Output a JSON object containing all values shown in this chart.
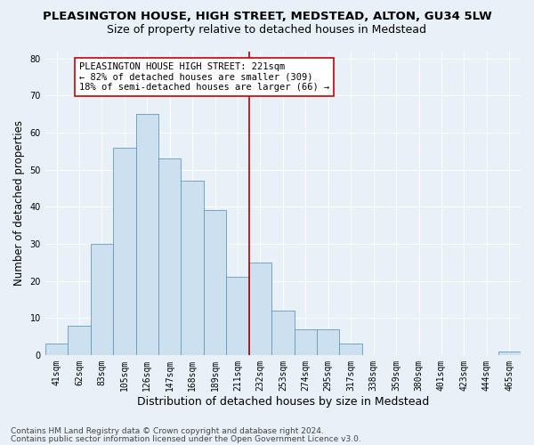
{
  "title": "PLEASINGTON HOUSE, HIGH STREET, MEDSTEAD, ALTON, GU34 5LW",
  "subtitle": "Size of property relative to detached houses in Medstead",
  "xlabel": "Distribution of detached houses by size in Medstead",
  "ylabel": "Number of detached properties",
  "categories": [
    "41sqm",
    "62sqm",
    "83sqm",
    "105sqm",
    "126sqm",
    "147sqm",
    "168sqm",
    "189sqm",
    "211sqm",
    "232sqm",
    "253sqm",
    "274sqm",
    "295sqm",
    "317sqm",
    "338sqm",
    "359sqm",
    "380sqm",
    "401sqm",
    "423sqm",
    "444sqm",
    "465sqm"
  ],
  "values": [
    3,
    8,
    30,
    56,
    65,
    53,
    47,
    39,
    21,
    25,
    12,
    7,
    7,
    3,
    0,
    0,
    0,
    0,
    0,
    0,
    1
  ],
  "bar_color": "#cce0f0",
  "bar_edge_color": "#6699bb",
  "bar_width": 1.0,
  "vline_x_index": 9,
  "vline_color": "#aa0000",
  "ylim": [
    0,
    82
  ],
  "yticks": [
    0,
    10,
    20,
    30,
    40,
    50,
    60,
    70,
    80
  ],
  "annotation_text": "PLEASINGTON HOUSE HIGH STREET: 221sqm\n← 82% of detached houses are smaller (309)\n18% of semi-detached houses are larger (66) →",
  "annotation_box_facecolor": "#ffffff",
  "annotation_box_edgecolor": "#cc0000",
  "background_color": "#e8f0f8",
  "grid_color": "#ffffff",
  "footer_line1": "Contains HM Land Registry data © Crown copyright and database right 2024.",
  "footer_line2": "Contains public sector information licensed under the Open Government Licence v3.0.",
  "title_fontsize": 9.5,
  "subtitle_fontsize": 9,
  "xlabel_fontsize": 9,
  "ylabel_fontsize": 8.5,
  "tick_fontsize": 7,
  "annotation_fontsize": 7.5,
  "footer_fontsize": 6.5
}
